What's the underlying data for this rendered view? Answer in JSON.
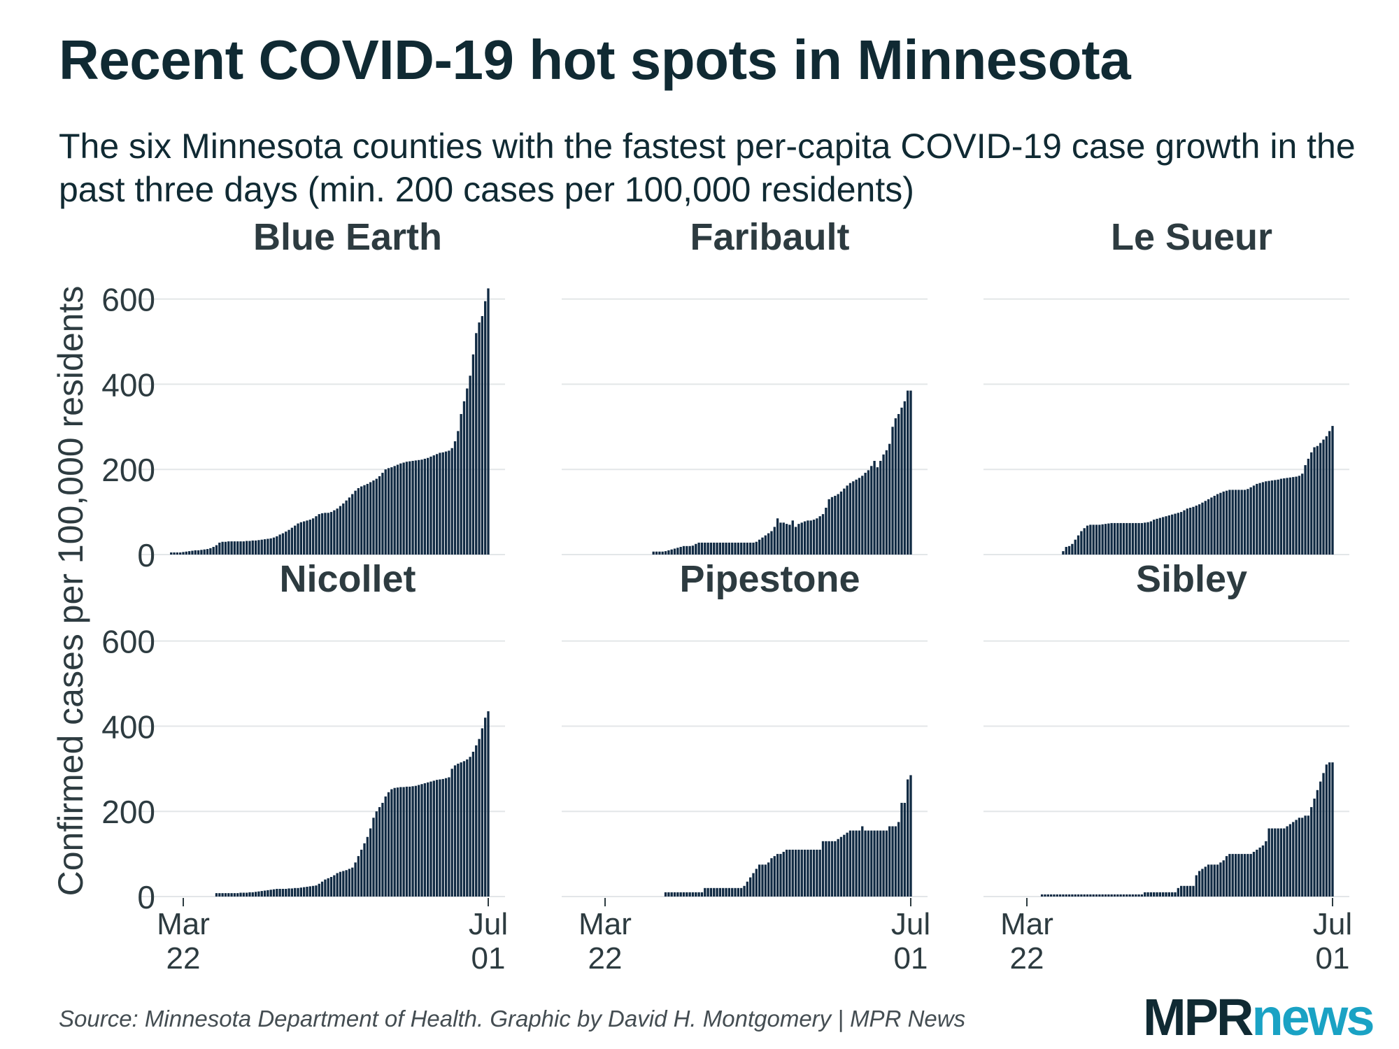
{
  "chart_data": {
    "type": "bar",
    "title": "Recent COVID-19 hot spots in Minnesota",
    "subtitle": "The six Minnesota counties with the fastest per-capita COVID-19 case growth in the past three days (min. 200 cases per 100,000 residents)",
    "ylabel": "Confirmed cases per 100,000 residents",
    "ylim": [
      0,
      660
    ],
    "yticks": [
      0,
      200,
      400,
      600
    ],
    "ytick_labels": [
      "0",
      "200",
      "400",
      "600"
    ],
    "xtick_labels": [
      {
        "line1": "Mar",
        "line2": "22"
      },
      {
        "line1": "Jul",
        "line2": "01"
      }
    ],
    "x_range": [
      "2020-03-22",
      "2020-07-01"
    ],
    "bar_color": "#102a43",
    "gridlines": true,
    "facets": [
      {
        "name": "Blue Earth",
        "values": [
          5,
          5,
          5,
          5,
          6,
          7,
          8,
          9,
          10,
          10,
          11,
          12,
          13,
          15,
          18,
          22,
          28,
          30,
          30,
          31,
          31,
          31,
          31,
          31,
          31,
          32,
          32,
          33,
          33,
          34,
          35,
          36,
          37,
          38,
          40,
          43,
          47,
          50,
          54,
          58,
          63,
          68,
          73,
          76,
          78,
          80,
          82,
          85,
          90,
          95,
          97,
          98,
          98,
          100,
          104,
          108,
          114,
          120,
          127,
          134,
          142,
          150,
          156,
          160,
          163,
          166,
          170,
          174,
          178,
          184,
          192,
          200,
          203,
          205,
          208,
          211,
          214,
          216,
          218,
          219,
          220,
          221,
          222,
          223,
          225,
          227,
          230,
          233,
          236,
          239,
          240,
          242,
          244,
          250,
          266,
          290,
          330,
          360,
          390,
          420,
          470,
          520,
          545,
          560,
          595,
          625
        ]
      },
      {
        "name": "Faribault",
        "values": [
          7,
          7,
          7,
          7,
          8,
          10,
          12,
          14,
          16,
          18,
          20,
          20,
          20,
          21,
          25,
          28,
          28,
          28,
          28,
          28,
          28,
          28,
          28,
          28,
          28,
          28,
          28,
          28,
          28,
          28,
          28,
          28,
          28,
          28,
          30,
          35,
          40,
          45,
          50,
          55,
          65,
          85,
          75,
          75,
          72,
          70,
          80,
          65,
          72,
          75,
          78,
          80,
          80,
          82,
          85,
          90,
          95,
          110,
          130,
          135,
          138,
          142,
          148,
          155,
          162,
          168,
          172,
          176,
          180,
          185,
          192,
          198,
          208,
          220,
          205,
          220,
          235,
          245,
          260,
          300,
          320,
          330,
          345,
          360,
          385,
          385
        ]
      },
      {
        "name": "Le Sueur",
        "values": [
          8,
          18,
          20,
          25,
          35,
          45,
          55,
          62,
          68,
          70,
          70,
          70,
          70,
          71,
          72,
          73,
          74,
          74,
          74,
          74,
          74,
          74,
          74,
          74,
          74,
          74,
          74,
          75,
          76,
          78,
          82,
          84,
          86,
          88,
          90,
          92,
          94,
          96,
          98,
          100,
          104,
          108,
          110,
          112,
          115,
          118,
          122,
          126,
          130,
          134,
          138,
          142,
          145,
          148,
          150,
          152,
          152,
          152,
          152,
          152,
          152,
          154,
          158,
          162,
          166,
          168,
          170,
          172,
          173,
          174,
          175,
          176,
          178,
          179,
          180,
          181,
          182,
          183,
          185,
          190,
          210,
          225,
          240,
          252,
          255,
          262,
          270,
          278,
          290,
          302
        ]
      },
      {
        "name": "Nicollet",
        "values": [
          8,
          8,
          8,
          8,
          8,
          8,
          8,
          8,
          9,
          9,
          9,
          10,
          10,
          11,
          12,
          13,
          14,
          15,
          16,
          17,
          18,
          18,
          18,
          18,
          19,
          19,
          20,
          20,
          21,
          22,
          23,
          24,
          25,
          26,
          30,
          35,
          40,
          43,
          46,
          50,
          55,
          58,
          60,
          62,
          65,
          68,
          80,
          95,
          110,
          125,
          140,
          160,
          185,
          200,
          210,
          220,
          235,
          245,
          252,
          255,
          256,
          257,
          257,
          258,
          258,
          259,
          260,
          262,
          264,
          266,
          268,
          270,
          272,
          274,
          275,
          276,
          278,
          280,
          300,
          308,
          312,
          315,
          318,
          322,
          328,
          340,
          355,
          370,
          395,
          420,
          435
        ]
      },
      {
        "name": "Pipestone",
        "values": [
          10,
          10,
          10,
          10,
          10,
          10,
          10,
          10,
          10,
          10,
          10,
          10,
          10,
          20,
          20,
          20,
          20,
          20,
          20,
          20,
          20,
          20,
          20,
          20,
          20,
          20,
          25,
          35,
          45,
          55,
          65,
          75,
          75,
          75,
          80,
          90,
          95,
          100,
          100,
          105,
          110,
          110,
          110,
          110,
          110,
          110,
          110,
          110,
          110,
          110,
          110,
          110,
          130,
          130,
          130,
          130,
          130,
          135,
          140,
          145,
          150,
          155,
          155,
          155,
          155,
          165,
          155,
          155,
          155,
          155,
          155,
          155,
          155,
          155,
          165,
          165,
          165,
          175,
          220,
          220,
          275,
          285
        ]
      },
      {
        "name": "Sibley",
        "values": [
          5,
          5,
          5,
          5,
          5,
          5,
          5,
          5,
          5,
          5,
          5,
          5,
          5,
          5,
          5,
          5,
          5,
          5,
          5,
          5,
          5,
          5,
          5,
          5,
          5,
          5,
          5,
          5,
          5,
          5,
          5,
          5,
          5,
          5,
          10,
          10,
          10,
          10,
          10,
          10,
          10,
          10,
          10,
          10,
          10,
          20,
          25,
          25,
          25,
          25,
          25,
          50,
          60,
          65,
          70,
          75,
          75,
          75,
          75,
          80,
          85,
          95,
          100,
          100,
          100,
          100,
          100,
          100,
          100,
          100,
          105,
          110,
          115,
          120,
          130,
          160,
          160,
          160,
          160,
          160,
          160,
          165,
          170,
          175,
          180,
          185,
          185,
          190,
          190,
          210,
          230,
          250,
          270,
          290,
          310,
          315,
          315
        ]
      }
    ]
  },
  "footer": {
    "source": "Source: Minnesota Department of Health. Graphic by David H. Montgomery | MPR News",
    "logo_mpr": "MPR",
    "logo_news": "news"
  }
}
